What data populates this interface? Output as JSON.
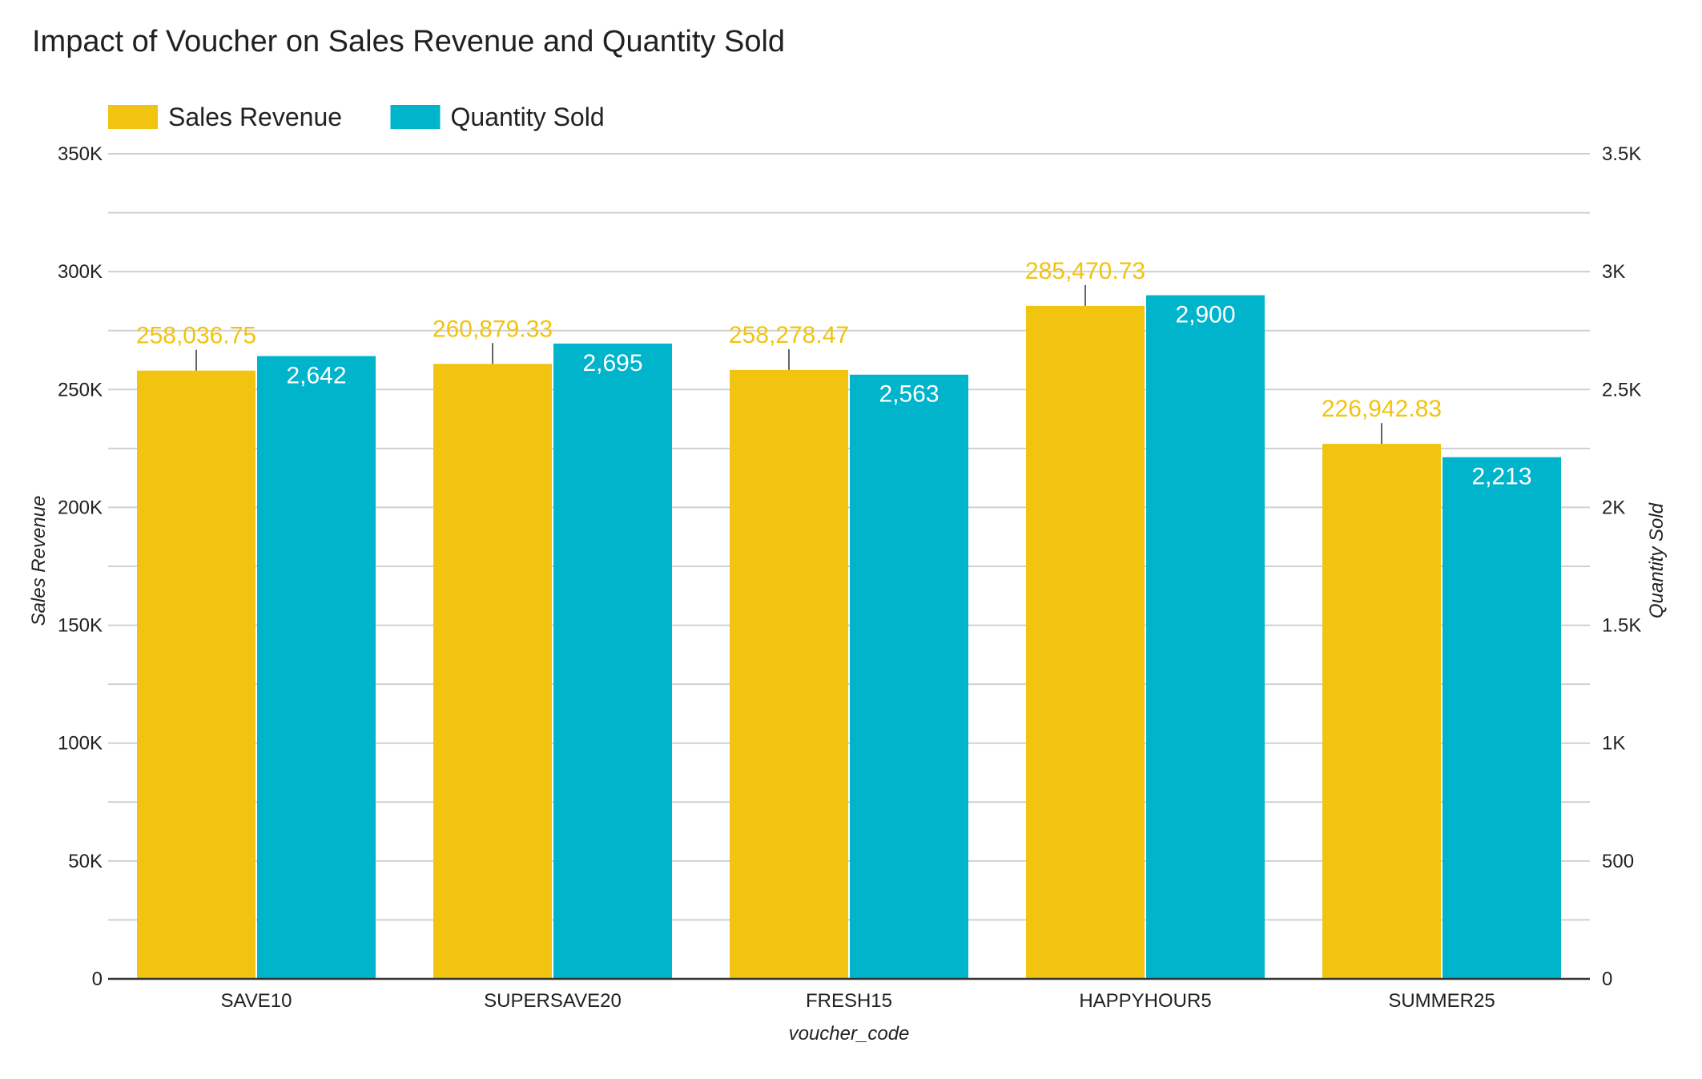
{
  "chart_data": {
    "type": "bar",
    "title": "Impact of Voucher on Sales Revenue and Quantity Sold",
    "xlabel": "voucher_code",
    "ylabel": "Sales Revenue",
    "y2label": "Quantity Sold",
    "categories": [
      "SAVE10",
      "SUPERSAVE20",
      "FRESH15",
      "HAPPYHOUR5",
      "SUMMER25"
    ],
    "series": [
      {
        "name": "Sales Revenue",
        "axis": "left",
        "color": "#F1C40F",
        "values": [
          258036.75,
          260879.33,
          258278.47,
          285470.73,
          226942.83
        ],
        "labels": [
          "258,036.75",
          "260,879.33",
          "258,278.47",
          "285,470.73",
          "226,942.83"
        ]
      },
      {
        "name": "Quantity Sold",
        "axis": "right",
        "color": "#00B4CC",
        "values": [
          2642,
          2695,
          2563,
          2900,
          2213
        ],
        "labels": [
          "2,642",
          "2,695",
          "2,563",
          "2,900",
          "2,213"
        ]
      }
    ],
    "ylim": [
      0,
      350000
    ],
    "y2lim": [
      0,
      3500
    ],
    "yticks": [
      "0",
      "50K",
      "100K",
      "150K",
      "200K",
      "250K",
      "300K",
      "350K"
    ],
    "y2ticks": [
      "0",
      "500",
      "1K",
      "1.5K",
      "2K",
      "2.5K",
      "3K",
      "3.5K"
    ],
    "grid": true,
    "legend_position": "top-left"
  }
}
